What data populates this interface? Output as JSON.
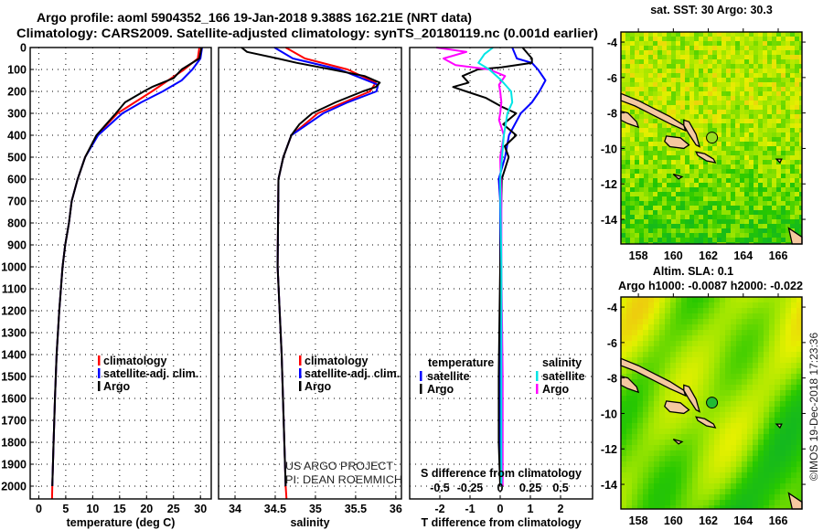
{
  "header": {
    "title_line1": "Argo profile: aoml 5904352_166 19-Jan-2018 9.388S 162.21E (NRT data)",
    "title_line2": "Climatology: CARS2009. Satellite-adjusted climatology: synTS_20180119.nc (0.001d earlier)"
  },
  "colors": {
    "climatology": "#ff0000",
    "satellite": "#0000ff",
    "argo": "#000000",
    "s_satellite": "#00e5e5",
    "s_argo": "#ff00ff"
  },
  "credits": {
    "line1": "US ARGO PROJECT",
    "line2": "PI: DEAN ROEMMICH",
    "imos": "©IMOS 19-Dec-2018 17:23:36"
  },
  "chart_data": [
    {
      "type": "line",
      "id": "temperature",
      "xlabel": "temperature (deg C)",
      "ylabel": "depth",
      "xlim": [
        -1.6,
        32
      ],
      "ylim": [
        2083,
        0
      ],
      "xticks": [
        0,
        5,
        10,
        15,
        20,
        25,
        30
      ],
      "yticks": [
        0,
        100,
        200,
        300,
        400,
        500,
        600,
        700,
        800,
        900,
        1000,
        1100,
        1200,
        1300,
        1400,
        1500,
        1600,
        1700,
        1800,
        1900,
        2000
      ],
      "legend": [
        "climatology",
        "satellite-adj. clim.",
        "Argo"
      ],
      "series": [
        {
          "name": "climatology",
          "color": "#ff0000",
          "depth": [
            0,
            50,
            100,
            200,
            300,
            400,
            500,
            600,
            700,
            800,
            900,
            1000,
            1200,
            1400,
            1600,
            1800,
            2000,
            2070
          ],
          "values": [
            29.8,
            29.5,
            27,
            21,
            14.6,
            10.8,
            8.6,
            7.2,
            6.1,
            5.6,
            4.9,
            4.4,
            3.8,
            3.3,
            3.0,
            2.75,
            2.5,
            2.45
          ]
        },
        {
          "name": "satellite-adj. clim.",
          "color": "#0000ff",
          "depth": [
            0,
            50,
            100,
            150,
            200,
            250,
            300,
            400,
            500,
            600,
            700,
            800,
            900,
            1000,
            1200,
            1400,
            1600,
            1800,
            2000
          ],
          "values": [
            30.3,
            30,
            28.5,
            26.5,
            23,
            19,
            15.5,
            11,
            8.6,
            7.2,
            6.1,
            5.6,
            4.9,
            4.4,
            3.8,
            3.3,
            3.0,
            2.75,
            2.5
          ]
        },
        {
          "name": "Argo",
          "color": "#000000",
          "depth": [
            0,
            50,
            100,
            140,
            180,
            200,
            250,
            300,
            400,
            500,
            600,
            700,
            800,
            900,
            1000,
            1200,
            1400,
            1600,
            1800,
            2000
          ],
          "values": [
            30.2,
            29.8,
            26.5,
            25,
            21,
            19.5,
            16,
            14.3,
            10.7,
            8.6,
            7.2,
            6.1,
            5.6,
            4.9,
            4.4,
            3.8,
            3.3,
            3.0,
            2.75,
            2.5
          ]
        }
      ]
    },
    {
      "type": "line",
      "id": "salinity",
      "xlabel": "salinity",
      "ylabel": "depth",
      "xlim": [
        33.795,
        36.07
      ],
      "ylim": [
        2083,
        0
      ],
      "xticks": [
        34,
        34.5,
        35,
        35.5,
        36
      ],
      "legend": [
        "climatology",
        "satellite-adj. clim.",
        "Argo"
      ],
      "series": [
        {
          "name": "climatology",
          "color": "#ff0000",
          "depth": [
            0,
            50,
            100,
            160,
            200,
            300,
            400,
            500,
            600,
            1000,
            1400,
            2000,
            2070
          ],
          "values": [
            34.63,
            34.87,
            35.4,
            35.75,
            35.68,
            35.03,
            34.7,
            34.6,
            34.54,
            34.53,
            34.58,
            34.63,
            34.64
          ]
        },
        {
          "name": "satellite-adj. clim.",
          "color": "#0000ff",
          "depth": [
            0,
            50,
            100,
            170,
            200,
            250,
            300,
            400,
            500,
            600,
            1000,
            1400,
            2000
          ],
          "values": [
            34.49,
            34.72,
            35.3,
            35.78,
            35.76,
            35.4,
            35.1,
            34.7,
            34.6,
            34.54,
            34.53,
            34.58,
            34.63
          ]
        },
        {
          "name": "Argo",
          "color": "#000000",
          "depth": [
            0,
            20,
            50,
            70,
            100,
            130,
            160,
            180,
            200,
            250,
            300,
            350,
            400,
            500,
            600,
            1000,
            1400,
            2000
          ],
          "values": [
            34.08,
            34.15,
            34.53,
            34.77,
            35.2,
            35.61,
            35.8,
            35.75,
            35.59,
            35.25,
            34.96,
            34.8,
            34.7,
            34.6,
            34.54,
            34.53,
            34.58,
            34.63
          ]
        }
      ]
    },
    {
      "type": "line",
      "id": "differences",
      "xlabel": "T difference from climatology",
      "x2label": "S difference from climatology",
      "ylabel": "depth",
      "xlim": [
        -3.0,
        3.06
      ],
      "ylim": [
        2083,
        0
      ],
      "xticks": [
        -2,
        -1,
        0,
        1,
        2
      ],
      "x2ticks": [
        -0.5,
        -0.25,
        0,
        0.25,
        0.5
      ],
      "x2ticklabels": [
        "-0.5",
        "-0.25",
        "0",
        "0.25",
        "0.5"
      ],
      "legend_t_title": "temperature",
      "legend_s_title": "salinity",
      "legend_t": [
        "satellite",
        "Argo"
      ],
      "legend_s": [
        "satellite",
        "Argo"
      ],
      "series": [
        {
          "name": "T satellite",
          "axis": "T",
          "color": "#0000ff",
          "depth": [
            0,
            50,
            70,
            100,
            150,
            200,
            250,
            300,
            400,
            500,
            600,
            700,
            1000,
            1500,
            2000
          ],
          "values": [
            0.4,
            0.55,
            1.05,
            1.25,
            1.5,
            1.3,
            1.05,
            0.68,
            0.29,
            0.16,
            -0.05,
            0,
            0,
            0,
            0
          ]
        },
        {
          "name": "T Argo",
          "axis": "T",
          "color": "#000000",
          "depth": [
            0,
            50,
            70,
            90,
            100,
            130,
            160,
            180,
            200,
            230,
            270,
            300,
            350,
            400,
            450,
            500,
            600,
            800,
            1000,
            1300,
            1500,
            1800,
            2000
          ],
          "values": [
            0.74,
            1.05,
            1.05,
            0.05,
            -0.74,
            -1.25,
            -1.05,
            -1.56,
            -1.13,
            -0.47,
            0.05,
            0.53,
            0.1,
            0.53,
            0.15,
            0.28,
            0.05,
            0.02,
            0,
            -0.03,
            -0.05,
            -0.05,
            0
          ]
        },
        {
          "name": "S Argo",
          "axis": "S",
          "color": "#ff00ff",
          "depth": [
            0,
            20,
            50,
            80,
            100,
            130,
            170,
            200,
            250,
            300,
            330,
            400,
            500,
            700,
            1000,
            1500,
            2000
          ],
          "values": [
            -0.53,
            -0.28,
            -0.47,
            -0.37,
            -0.09,
            0.04,
            -0.01,
            0,
            0.01,
            0,
            -0.01,
            0.03,
            0,
            0.01,
            0.01,
            0.02,
            0.02
          ]
        },
        {
          "name": "S satellite",
          "axis": "S",
          "color": "#00e5e5",
          "depth": [
            0,
            30,
            70,
            100,
            150,
            200,
            250,
            300,
            400,
            600,
            1000,
            1500,
            2000
          ],
          "values": [
            -0.06,
            -0.13,
            -0.18,
            -0.09,
            0.01,
            0.09,
            0.1,
            0.06,
            0.03,
            0,
            0.01,
            0.01,
            0.01
          ]
        }
      ]
    },
    {
      "type": "heatmap",
      "id": "sst_map",
      "title": "sat. SST: 30 Argo: 30.3",
      "xlim": [
        157.0,
        167.36
      ],
      "ylim": [
        -15.39,
        -3.43
      ],
      "xticks": [
        158,
        160,
        162,
        164,
        166
      ],
      "yticks": [
        -4,
        -6,
        -8,
        -10,
        -12,
        -14
      ],
      "argo_position": {
        "lon": 162.21,
        "lat": -9.388
      }
    },
    {
      "type": "heatmap",
      "id": "sla_map",
      "title": "Altim. SLA: 0.1",
      "subtitle": "Argo h1000: -0.0087 h2000: -0.022",
      "xlim": [
        157.0,
        167.36
      ],
      "ylim": [
        -15.39,
        -3.43
      ],
      "xticks": [
        158,
        160,
        162,
        164,
        166
      ],
      "yticks": [
        -4,
        -6,
        -8,
        -10,
        -12,
        -14
      ],
      "argo_position": {
        "lon": 162.21,
        "lat": -9.388
      }
    }
  ]
}
